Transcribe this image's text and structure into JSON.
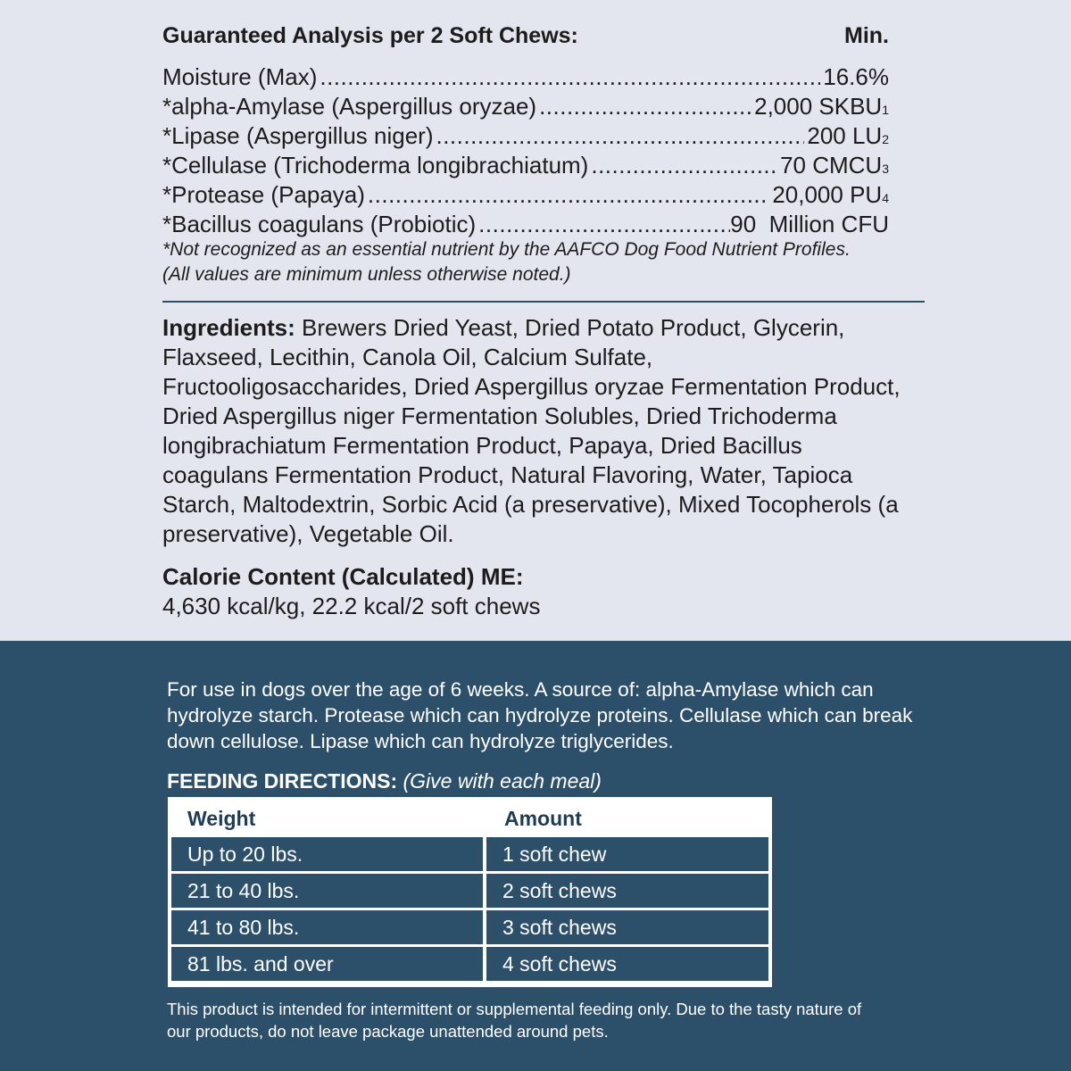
{
  "analysis": {
    "title": "Guaranteed Analysis per 2 Soft Chews:",
    "column": "Min.",
    "rows": [
      {
        "name": "Moisture (Max)",
        "value": "16.6%",
        "sup": ""
      },
      {
        "name": "*alpha-Amylase (Aspergillus oryzae)",
        "value": "2,000 SKBU",
        "sup": "1"
      },
      {
        "name": "*Lipase (Aspergillus niger)",
        "value": "200 LU",
        "sup": "2"
      },
      {
        "name": "*Cellulase (Trichoderma longibrachiatum)",
        "value": "70 CMCU",
        "sup": "3"
      },
      {
        "name": "*Protease (Papaya)",
        "value": "20,000 PU",
        "sup": "4"
      },
      {
        "name": "*Bacillus coagulans (Probiotic)",
        "value": "90  Million CFU",
        "sup": ""
      }
    ],
    "note1": "*Not recognized as an essential nutrient by the AAFCO Dog Food Nutrient Profiles.",
    "note2": "(All values are minimum unless otherwise noted.)"
  },
  "ingredients": {
    "label": "Ingredients:",
    "text": " Brewers Dried Yeast, Dried Potato Product, Glycerin, Flaxseed, Lecithin, Canola Oil, Calcium Sulfate, Fructooligosaccharides, Dried Aspergillus oryzae Fermentation Product, Dried Aspergillus niger Fermentation Solubles, Dried Trichoderma longibrachiatum Fermentation Product, Papaya, Dried Bacillus coagulans Fermentation Product, Natural Flavoring, Water, Tapioca Starch, Maltodextrin, Sorbic Acid (a preservative), Mixed Tocopherols (a preservative), Vegetable Oil."
  },
  "calorie": {
    "label": "Calorie Content (Calculated) ME:",
    "value": "4,630 kcal/kg, 22.2 kcal/2 soft chews"
  },
  "description": "For use in dogs over the age of 6 weeks. A source of: alpha-Amylase which can hydrolyze starch. Protease which can hydrolyze proteins. Cellulase which can break down cellulose. Lipase which can hydrolyze triglycerides.",
  "feeding": {
    "label": "FEEDING DIRECTIONS:",
    "sub": " (Give with each meal)",
    "headers": [
      "Weight",
      "Amount"
    ],
    "rows": [
      [
        "Up to 20 lbs.",
        "1 soft chew"
      ],
      [
        "21 to 40 lbs.",
        "2 soft chews"
      ],
      [
        "41 to 80 lbs.",
        "3 soft chews"
      ],
      [
        "81 lbs. and over",
        "4 soft chews"
      ]
    ]
  },
  "disclaimer": "This product is intended for intermittent or supplemental feeding only. Due to the tasty nature of our products, do not leave package unattended around pets.",
  "colors": {
    "light_bg": "#e3e6ef",
    "dark_bg": "#2c5069",
    "text": "#1c1c1c"
  }
}
